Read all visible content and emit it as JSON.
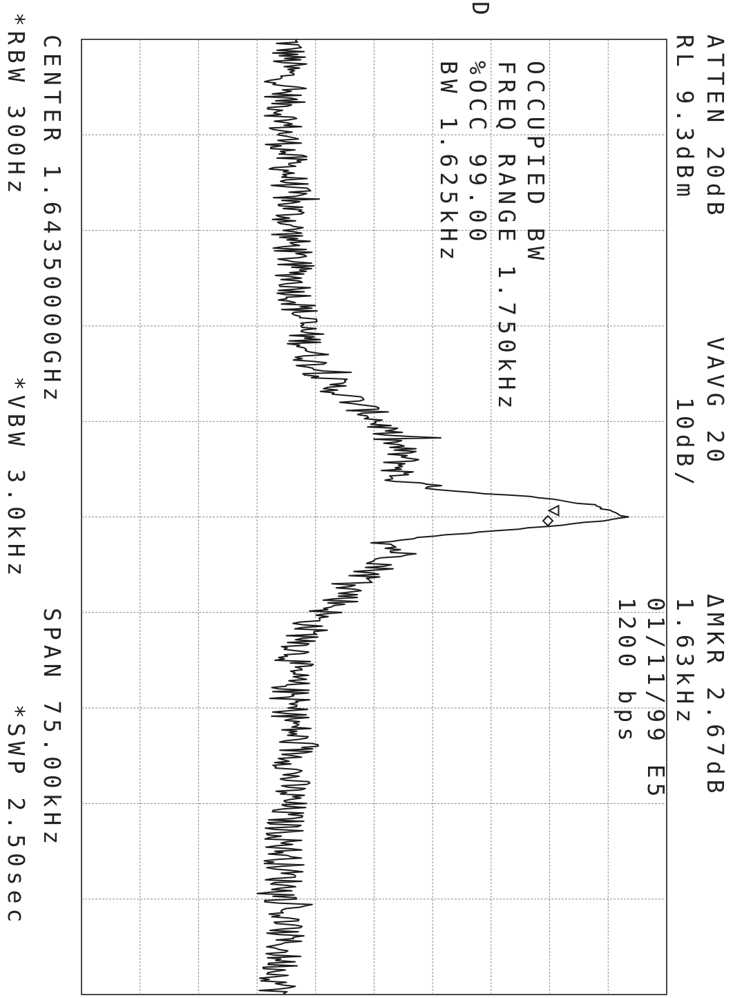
{
  "header": {
    "atten": "ATTEN 20dB",
    "ref_level": "RL 9.3dBm",
    "vavg": "VAVG 20",
    "scale": "10dB/",
    "marker_delta": "ΔMKR 2.67dB",
    "marker_freq": "1.63kHz",
    "date_line": "01/11/99 E5",
    "rate": "1200 bps",
    "trace_mode": "D"
  },
  "measurement": {
    "line1": "OCCUPIED BW",
    "line2": "FREQ RANGE 1.750kHz",
    "line3": "%OCC 99.00",
    "line4": "BW 1.625kHz"
  },
  "footer": {
    "center": "CENTER 1.64350000GHz",
    "span": "SPAN 75.00kHz",
    "rbw": "*RBW 300Hz",
    "vbw": "*VBW 3.0kHz",
    "sweep": "*SWP 2.50sec"
  },
  "colors": {
    "trace": "#1a1a1a",
    "grid": "#8a8a8a",
    "text": "#222222"
  },
  "chart_data": {
    "type": "line",
    "x_unit": "kHz offset from center",
    "xlim": [
      -37.5,
      37.5
    ],
    "ylim": [
      -90.7,
      9.3
    ],
    "y_unit": "dBm",
    "grid": true,
    "x_divisions": 10,
    "y_divisions": 10,
    "series": [
      {
        "x": [
          -37.5,
          -34,
          -30,
          -26,
          -22,
          -18,
          -15,
          -12,
          -10,
          -8,
          -7,
          -6,
          -5,
          -4,
          -3,
          -2.5,
          -2,
          -1.5,
          -1,
          -0.5,
          -0.3,
          0,
          0.3,
          0.5,
          1,
          1.5,
          2,
          2.5,
          3,
          4,
          5,
          6,
          7,
          8,
          10,
          12,
          15,
          18,
          21,
          24,
          28,
          32,
          37.5
        ],
        "y": [
          -55,
          -56,
          -56,
          -55,
          -55,
          -54,
          -53,
          -51,
          -47,
          -41,
          -39,
          -38,
          -36,
          -36,
          -37,
          -33,
          -25,
          -12,
          -4,
          -1,
          0,
          2,
          -2,
          -5,
          -17,
          -31,
          -38,
          -37,
          -36,
          -40,
          -43,
          -45,
          -47,
          -51,
          -53,
          -55,
          -55,
          -54,
          -55,
          -56,
          -56,
          -56,
          -57
        ]
      }
    ],
    "markers": [
      {
        "shape": "triangle",
        "x": -0.5,
        "y": -10
      },
      {
        "shape": "diamond",
        "x": 0.3,
        "y": -11
      }
    ]
  }
}
